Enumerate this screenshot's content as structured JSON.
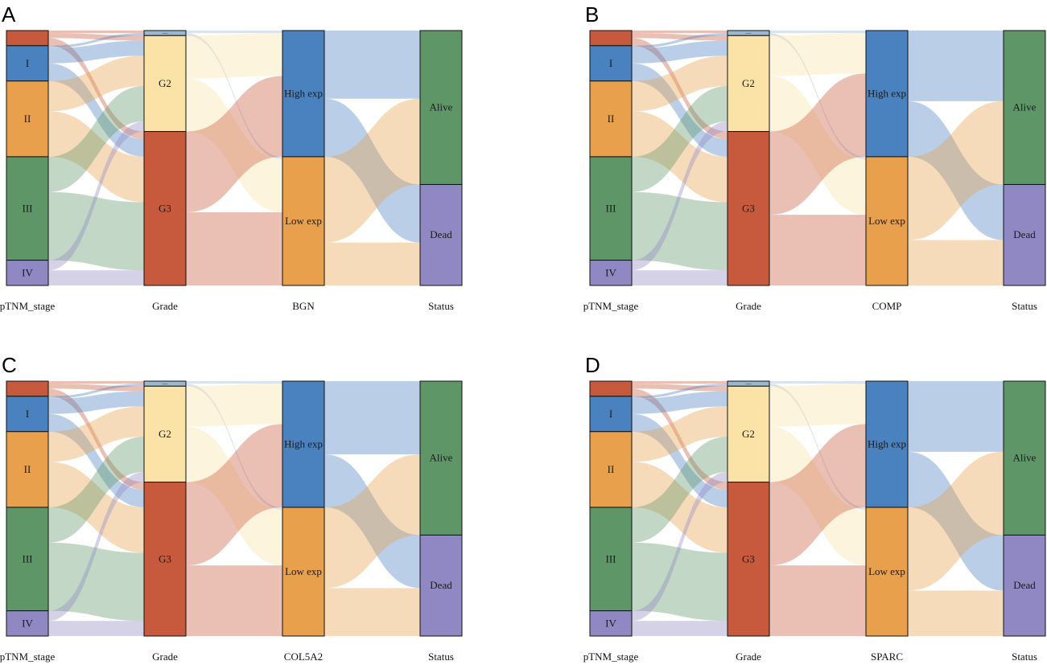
{
  "colors": {
    "stage_na": "#C75A3C",
    "stage_I": "#4A82C0",
    "stage_II": "#E8A04D",
    "stage_III": "#5E9667",
    "stage_IV": "#9088C2",
    "grade_small": "#9BB9CE",
    "grade_G2": "#FBE3A7",
    "grade_G3": "#C75A3C",
    "high_exp": "#4A82C0",
    "low_exp": "#E8A04D",
    "alive": "#5E9667",
    "dead": "#9088C2"
  },
  "panels": [
    {
      "letter": "A",
      "axes": [
        "pTNM_stage",
        "Grade",
        "BGN",
        "Status"
      ],
      "stage_nodes": [
        {
          "key": "na",
          "label": "",
          "value": 6
        },
        {
          "key": "I",
          "label": "I",
          "value": 14
        },
        {
          "key": "II",
          "label": "II",
          "value": 30
        },
        {
          "key": "III",
          "label": "III",
          "value": 41
        },
        {
          "key": "IV",
          "label": "IV",
          "value": 10
        }
      ],
      "grade_nodes": [
        {
          "key": "small",
          "label": "—",
          "value": 2
        },
        {
          "key": "G2",
          "label": "G2",
          "value": 38
        },
        {
          "key": "G3",
          "label": "G3",
          "value": 61
        }
      ],
      "gene_nodes": [
        {
          "key": "high",
          "label": "High exp",
          "value": 50
        },
        {
          "key": "low",
          "label": "Low exp",
          "value": 51
        }
      ],
      "status_nodes": [
        {
          "key": "alive",
          "label": "Alive",
          "value": 61
        },
        {
          "key": "dead",
          "label": "Dead",
          "value": 40
        }
      ],
      "links_stage_grade": [
        {
          "from": "na",
          "to": "small",
          "value": 1
        },
        {
          "from": "na",
          "to": "G2",
          "value": 2
        },
        {
          "from": "na",
          "to": "G3",
          "value": 3
        },
        {
          "from": "I",
          "to": "small",
          "value": 1
        },
        {
          "from": "I",
          "to": "G2",
          "value": 6
        },
        {
          "from": "I",
          "to": "G3",
          "value": 7
        },
        {
          "from": "II",
          "to": "G2",
          "value": 12
        },
        {
          "from": "II",
          "to": "G3",
          "value": 18
        },
        {
          "from": "III",
          "to": "G2",
          "value": 14
        },
        {
          "from": "III",
          "to": "G3",
          "value": 27
        },
        {
          "from": "IV",
          "to": "G2",
          "value": 4
        },
        {
          "from": "IV",
          "to": "G3",
          "value": 6
        }
      ],
      "links_grade_gene": [
        {
          "from": "small",
          "to": "high",
          "value": 1
        },
        {
          "from": "small",
          "to": "low",
          "value": 1
        },
        {
          "from": "G2",
          "to": "high",
          "value": 17
        },
        {
          "from": "G2",
          "to": "low",
          "value": 21
        },
        {
          "from": "G3",
          "to": "high",
          "value": 32
        },
        {
          "from": "G3",
          "to": "low",
          "value": 29
        }
      ],
      "links_gene_status": [
        {
          "from": "high",
          "to": "alive",
          "value": 27
        },
        {
          "from": "high",
          "to": "dead",
          "value": 23
        },
        {
          "from": "low",
          "to": "alive",
          "value": 34
        },
        {
          "from": "low",
          "to": "dead",
          "value": 17
        }
      ]
    },
    {
      "letter": "B",
      "axes": [
        "pTNM_stage",
        "Grade",
        "COMP",
        "Status"
      ],
      "stage_nodes": [
        {
          "key": "na",
          "label": "",
          "value": 6
        },
        {
          "key": "I",
          "label": "I",
          "value": 14
        },
        {
          "key": "II",
          "label": "II",
          "value": 30
        },
        {
          "key": "III",
          "label": "III",
          "value": 41
        },
        {
          "key": "IV",
          "label": "IV",
          "value": 10
        }
      ],
      "grade_nodes": [
        {
          "key": "small",
          "label": "—",
          "value": 2
        },
        {
          "key": "G2",
          "label": "G2",
          "value": 38
        },
        {
          "key": "G3",
          "label": "G3",
          "value": 61
        }
      ],
      "gene_nodes": [
        {
          "key": "high",
          "label": "High exp",
          "value": 50
        },
        {
          "key": "low",
          "label": "Low exp",
          "value": 51
        }
      ],
      "status_nodes": [
        {
          "key": "alive",
          "label": "Alive",
          "value": 61
        },
        {
          "key": "dead",
          "label": "Dead",
          "value": 40
        }
      ],
      "links_stage_grade": [
        {
          "from": "na",
          "to": "small",
          "value": 1
        },
        {
          "from": "na",
          "to": "G2",
          "value": 2
        },
        {
          "from": "na",
          "to": "G3",
          "value": 3
        },
        {
          "from": "I",
          "to": "small",
          "value": 1
        },
        {
          "from": "I",
          "to": "G2",
          "value": 6
        },
        {
          "from": "I",
          "to": "G3",
          "value": 7
        },
        {
          "from": "II",
          "to": "G2",
          "value": 12
        },
        {
          "from": "II",
          "to": "G3",
          "value": 18
        },
        {
          "from": "III",
          "to": "G2",
          "value": 14
        },
        {
          "from": "III",
          "to": "G3",
          "value": 27
        },
        {
          "from": "IV",
          "to": "G2",
          "value": 4
        },
        {
          "from": "IV",
          "to": "G3",
          "value": 6
        }
      ],
      "links_grade_gene": [
        {
          "from": "small",
          "to": "high",
          "value": 1
        },
        {
          "from": "small",
          "to": "low",
          "value": 1
        },
        {
          "from": "G2",
          "to": "high",
          "value": 16
        },
        {
          "from": "G2",
          "to": "low",
          "value": 22
        },
        {
          "from": "G3",
          "to": "high",
          "value": 33
        },
        {
          "from": "G3",
          "to": "low",
          "value": 28
        }
      ],
      "links_gene_status": [
        {
          "from": "high",
          "to": "alive",
          "value": 28
        },
        {
          "from": "high",
          "to": "dead",
          "value": 22
        },
        {
          "from": "low",
          "to": "alive",
          "value": 33
        },
        {
          "from": "low",
          "to": "dead",
          "value": 18
        }
      ]
    },
    {
      "letter": "C",
      "axes": [
        "pTNM_stage",
        "Grade",
        "COL5A2",
        "Status"
      ],
      "stage_nodes": [
        {
          "key": "na",
          "label": "",
          "value": 6
        },
        {
          "key": "I",
          "label": "I",
          "value": 14
        },
        {
          "key": "II",
          "label": "II",
          "value": 30
        },
        {
          "key": "III",
          "label": "III",
          "value": 41
        },
        {
          "key": "IV",
          "label": "IV",
          "value": 10
        }
      ],
      "grade_nodes": [
        {
          "key": "small",
          "label": "—",
          "value": 2
        },
        {
          "key": "G2",
          "label": "G2",
          "value": 38
        },
        {
          "key": "G3",
          "label": "G3",
          "value": 61
        }
      ],
      "gene_nodes": [
        {
          "key": "high",
          "label": "High exp",
          "value": 50
        },
        {
          "key": "low",
          "label": "Low exp",
          "value": 51
        }
      ],
      "status_nodes": [
        {
          "key": "alive",
          "label": "Alive",
          "value": 61
        },
        {
          "key": "dead",
          "label": "Dead",
          "value": 40
        }
      ],
      "links_stage_grade": [
        {
          "from": "na",
          "to": "small",
          "value": 1
        },
        {
          "from": "na",
          "to": "G2",
          "value": 2
        },
        {
          "from": "na",
          "to": "G3",
          "value": 3
        },
        {
          "from": "I",
          "to": "small",
          "value": 1
        },
        {
          "from": "I",
          "to": "G2",
          "value": 6
        },
        {
          "from": "I",
          "to": "G3",
          "value": 7
        },
        {
          "from": "II",
          "to": "G2",
          "value": 12
        },
        {
          "from": "II",
          "to": "G3",
          "value": 18
        },
        {
          "from": "III",
          "to": "G2",
          "value": 14
        },
        {
          "from": "III",
          "to": "G3",
          "value": 27
        },
        {
          "from": "IV",
          "to": "G2",
          "value": 4
        },
        {
          "from": "IV",
          "to": "G3",
          "value": 6
        }
      ],
      "links_grade_gene": [
        {
          "from": "small",
          "to": "high",
          "value": 1
        },
        {
          "from": "small",
          "to": "low",
          "value": 1
        },
        {
          "from": "G2",
          "to": "high",
          "value": 16
        },
        {
          "from": "G2",
          "to": "low",
          "value": 22
        },
        {
          "from": "G3",
          "to": "high",
          "value": 33
        },
        {
          "from": "G3",
          "to": "low",
          "value": 28
        }
      ],
      "links_gene_status": [
        {
          "from": "high",
          "to": "alive",
          "value": 29
        },
        {
          "from": "high",
          "to": "dead",
          "value": 21
        },
        {
          "from": "low",
          "to": "alive",
          "value": 32
        },
        {
          "from": "low",
          "to": "dead",
          "value": 19
        }
      ]
    },
    {
      "letter": "D",
      "axes": [
        "pTNM_stage",
        "Grade",
        "SPARC",
        "Status"
      ],
      "stage_nodes": [
        {
          "key": "na",
          "label": "",
          "value": 6
        },
        {
          "key": "I",
          "label": "I",
          "value": 14
        },
        {
          "key": "II",
          "label": "II",
          "value": 30
        },
        {
          "key": "III",
          "label": "III",
          "value": 41
        },
        {
          "key": "IV",
          "label": "IV",
          "value": 10
        }
      ],
      "grade_nodes": [
        {
          "key": "small",
          "label": "—",
          "value": 2
        },
        {
          "key": "G2",
          "label": "G2",
          "value": 38
        },
        {
          "key": "G3",
          "label": "G3",
          "value": 61
        }
      ],
      "gene_nodes": [
        {
          "key": "high",
          "label": "High exp",
          "value": 50
        },
        {
          "key": "low",
          "label": "Low exp",
          "value": 51
        }
      ],
      "status_nodes": [
        {
          "key": "alive",
          "label": "Alive",
          "value": 61
        },
        {
          "key": "dead",
          "label": "Dead",
          "value": 40
        }
      ],
      "links_stage_grade": [
        {
          "from": "na",
          "to": "small",
          "value": 1
        },
        {
          "from": "na",
          "to": "G2",
          "value": 2
        },
        {
          "from": "na",
          "to": "G3",
          "value": 3
        },
        {
          "from": "I",
          "to": "small",
          "value": 1
        },
        {
          "from": "I",
          "to": "G2",
          "value": 6
        },
        {
          "from": "I",
          "to": "G3",
          "value": 7
        },
        {
          "from": "II",
          "to": "G2",
          "value": 12
        },
        {
          "from": "II",
          "to": "G3",
          "value": 18
        },
        {
          "from": "III",
          "to": "G2",
          "value": 14
        },
        {
          "from": "III",
          "to": "G3",
          "value": 27
        },
        {
          "from": "IV",
          "to": "G2",
          "value": 4
        },
        {
          "from": "IV",
          "to": "G3",
          "value": 6
        }
      ],
      "links_grade_gene": [
        {
          "from": "small",
          "to": "high",
          "value": 1
        },
        {
          "from": "small",
          "to": "low",
          "value": 1
        },
        {
          "from": "G2",
          "to": "high",
          "value": 16
        },
        {
          "from": "G2",
          "to": "low",
          "value": 22
        },
        {
          "from": "G3",
          "to": "high",
          "value": 33
        },
        {
          "from": "G3",
          "to": "low",
          "value": 28
        }
      ],
      "links_gene_status": [
        {
          "from": "high",
          "to": "alive",
          "value": 28
        },
        {
          "from": "high",
          "to": "dead",
          "value": 22
        },
        {
          "from": "low",
          "to": "alive",
          "value": 33
        },
        {
          "from": "low",
          "to": "dead",
          "value": 18
        }
      ]
    }
  ]
}
